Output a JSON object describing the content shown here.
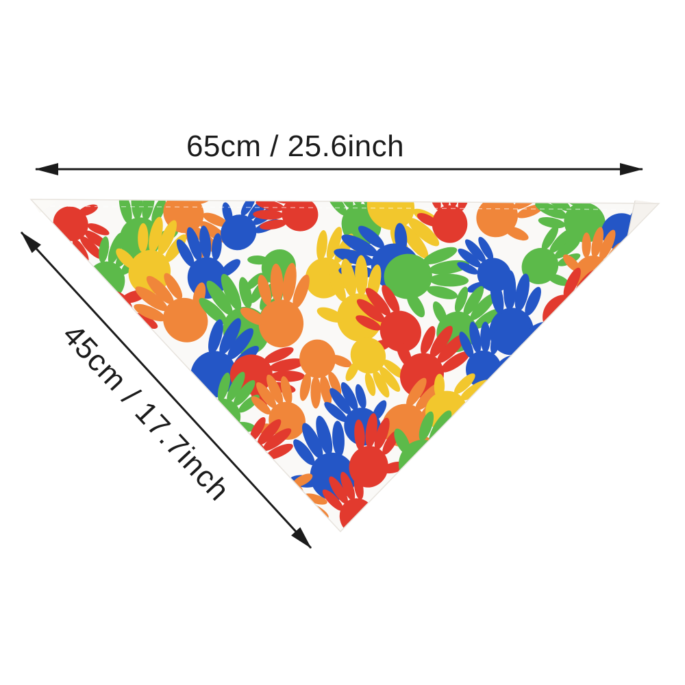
{
  "annotations": {
    "top_dimension": "65cm / 25.6inch",
    "diagonal_dimension": "45cm / 17.7inch"
  },
  "colors": {
    "handprint_palette": [
      "#e23a2e",
      "#2456c6",
      "#5cba4a",
      "#f0863a",
      "#f2c72d"
    ],
    "fabric_background": "#faf9f7",
    "fold_highlight": "#f5f2ee",
    "annotation_ink": "#1b1b1b",
    "page_background": "#ffffff"
  }
}
